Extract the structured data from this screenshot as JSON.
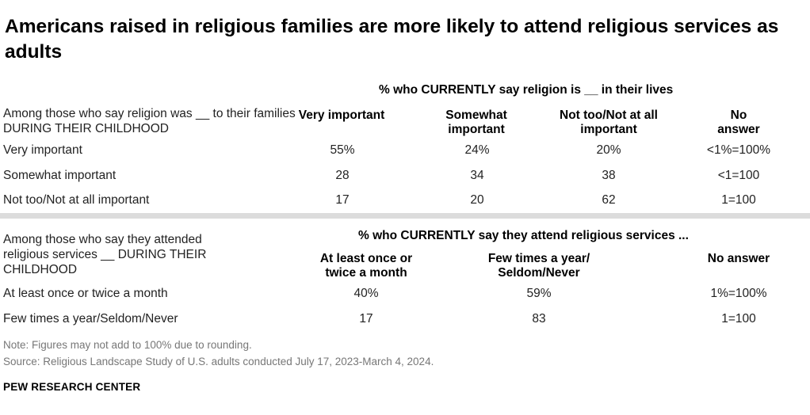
{
  "title": "Americans raised in religious families are more likely to attend religious services as adults",
  "chart_data": [
    {
      "type": "table",
      "header": "% who CURRENTLY say religion is __ in their lives",
      "stub_label": "Among those who say religion was __ to their families DURING THEIR CHILDHOOD",
      "columns": [
        "Very important",
        "Somewhat important",
        "Not too/Not at all important",
        "No answer"
      ],
      "rows": [
        {
          "label": "Very important",
          "values": [
            "55%",
            "24%",
            "20%",
            "<1%=100%"
          ]
        },
        {
          "label": "Somewhat important",
          "values": [
            "28",
            "34",
            "38",
            "<1=100"
          ]
        },
        {
          "label": "Not too/Not at all important",
          "values": [
            "17",
            "20",
            "62",
            "1=100"
          ]
        }
      ]
    },
    {
      "type": "table",
      "header": "% who CURRENTLY say they attend religious services ...",
      "stub_label": "Among those who say they attended religious services __ DURING THEIR CHILDHOOD",
      "columns": [
        "At least once or twice a month",
        "Few times a year/ Seldom/Never",
        "No answer"
      ],
      "rows": [
        {
          "label": "At least once or twice a month",
          "values": [
            "40%",
            "59%",
            "1%=100%"
          ]
        },
        {
          "label": "Few times a year/Seldom/Never",
          "values": [
            "17",
            "83",
            "1=100"
          ]
        }
      ]
    }
  ],
  "notes": {
    "note": "Note: Figures may not add to 100% due to rounding.",
    "source": "Source: Religious Landscape Study of U.S. adults conducted July 17, 2023-March 4, 2024."
  },
  "brand": "PEW RESEARCH CENTER"
}
